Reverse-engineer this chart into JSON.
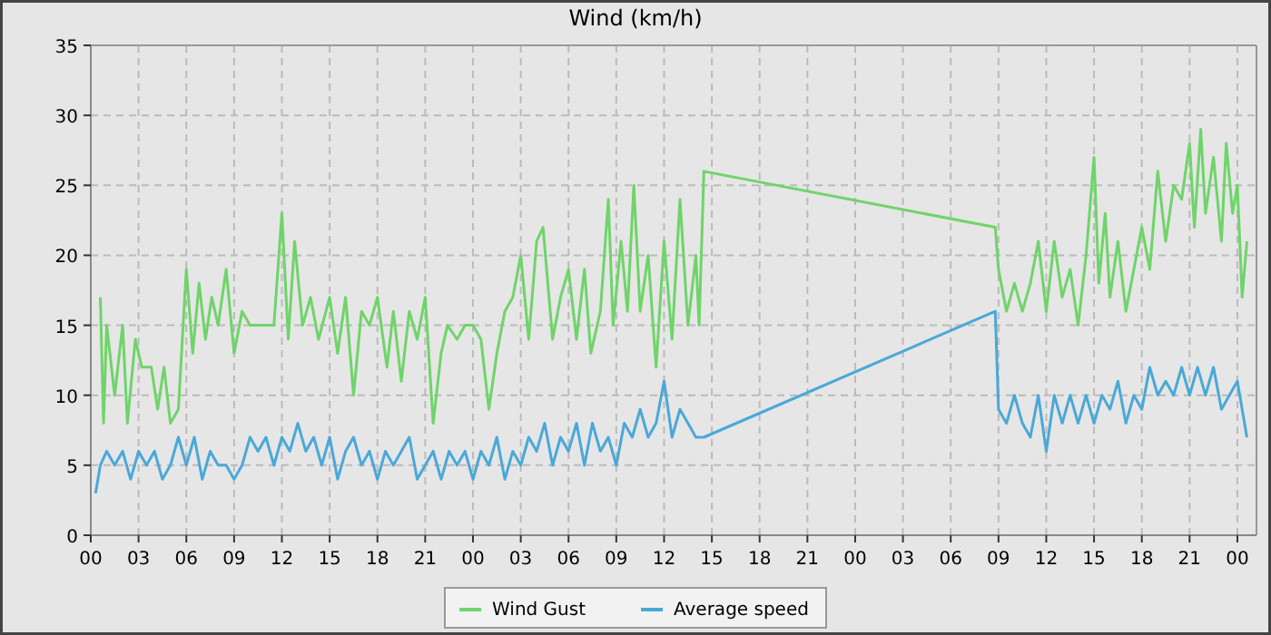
{
  "chart_data": {
    "type": "line",
    "title": "Wind (km/h)",
    "xlim": [
      0,
      73.2
    ],
    "ylim": [
      0,
      35
    ],
    "xticks": [
      {
        "value": 0,
        "label": "00"
      },
      {
        "value": 3,
        "label": "03"
      },
      {
        "value": 6,
        "label": "06"
      },
      {
        "value": 9,
        "label": "09"
      },
      {
        "value": 12,
        "label": "12"
      },
      {
        "value": 15,
        "label": "15"
      },
      {
        "value": 18,
        "label": "18"
      },
      {
        "value": 21,
        "label": "21"
      },
      {
        "value": 24,
        "label": "00"
      },
      {
        "value": 27,
        "label": "03"
      },
      {
        "value": 30,
        "label": "06"
      },
      {
        "value": 33,
        "label": "09"
      },
      {
        "value": 36,
        "label": "12"
      },
      {
        "value": 39,
        "label": "15"
      },
      {
        "value": 42,
        "label": "18"
      },
      {
        "value": 45,
        "label": "21"
      },
      {
        "value": 48,
        "label": "00"
      },
      {
        "value": 51,
        "label": "03"
      },
      {
        "value": 54,
        "label": "06"
      },
      {
        "value": 57,
        "label": "09"
      },
      {
        "value": 60,
        "label": "12"
      },
      {
        "value": 63,
        "label": "15"
      },
      {
        "value": 66,
        "label": "18"
      },
      {
        "value": 69,
        "label": "21"
      },
      {
        "value": 72,
        "label": "00"
      }
    ],
    "yticks": [
      0,
      5,
      10,
      15,
      20,
      25,
      30,
      35
    ],
    "grid": true,
    "legend": "bottom",
    "marker": "none",
    "line_style": "solid",
    "series": [
      {
        "name": "Wind Gust",
        "color": "#6fd46a",
        "x": [
          0.6,
          0.8,
          1,
          1.5,
          2,
          2.3,
          2.8,
          3.2,
          3.8,
          4.2,
          4.6,
          5,
          5.5,
          6,
          6.4,
          6.8,
          7.2,
          7.6,
          8,
          8.5,
          9,
          9.5,
          10,
          11,
          11.5,
          12,
          12.4,
          12.8,
          13.3,
          13.8,
          14.3,
          15,
          15.5,
          16,
          16.5,
          17,
          17.5,
          18,
          18.6,
          19,
          19.5,
          20,
          20.5,
          21,
          21.5,
          22,
          22.4,
          23,
          23.5,
          24,
          24.5,
          25,
          25.5,
          26,
          26.5,
          27,
          27.5,
          28,
          28.4,
          29,
          29.5,
          30,
          30.5,
          31,
          31.4,
          32,
          32.5,
          32.8,
          33.3,
          33.7,
          34.1,
          34.5,
          35,
          35.5,
          36,
          36.5,
          37,
          37.5,
          38,
          38.2,
          38.5,
          56.8,
          57,
          57.5,
          58,
          58.5,
          59,
          59.5,
          60,
          60.5,
          61,
          61.5,
          62,
          62.5,
          63,
          63.3,
          63.7,
          64,
          64.5,
          65,
          65.5,
          66,
          66.5,
          67,
          67.5,
          68,
          68.5,
          69,
          69.3,
          69.7,
          70,
          70.5,
          71,
          71.3,
          71.7,
          72,
          72.3,
          72.6
        ],
        "values": [
          17,
          8,
          15,
          10,
          15,
          8,
          14,
          12,
          12,
          9,
          12,
          8,
          9,
          19,
          13,
          18,
          14,
          17,
          15,
          19,
          13,
          16,
          15,
          15,
          15,
          23,
          14,
          21,
          15,
          17,
          14,
          17,
          13,
          17,
          10,
          16,
          15,
          17,
          12,
          16,
          11,
          16,
          14,
          17,
          8,
          13,
          15,
          14,
          15,
          15,
          14,
          9,
          13,
          16,
          17,
          20,
          14,
          21,
          22,
          14,
          17,
          19,
          14,
          19,
          13,
          16,
          24,
          15,
          21,
          16,
          25,
          16,
          20,
          12,
          21,
          14,
          24,
          15,
          20,
          15,
          26,
          22,
          19,
          16,
          18,
          16,
          18,
          21,
          16,
          21,
          17,
          19,
          15,
          20,
          27,
          18,
          23,
          17,
          21,
          16,
          19,
          22,
          19,
          26,
          21,
          25,
          24,
          28,
          22,
          29,
          23,
          27,
          21,
          28,
          23,
          25,
          17,
          21
        ]
      },
      {
        "name": "Average speed",
        "color": "#4aa8d8",
        "x": [
          0.3,
          0.6,
          1,
          1.5,
          2,
          2.5,
          3,
          3.5,
          4,
          4.5,
          5,
          5.5,
          6,
          6.5,
          7,
          7.5,
          8,
          8.5,
          9,
          9.5,
          10,
          10.5,
          11,
          11.5,
          12,
          12.5,
          13,
          13.5,
          14,
          14.5,
          15,
          15.5,
          16,
          16.5,
          17,
          17.5,
          18,
          18.5,
          19,
          19.5,
          20,
          20.5,
          21,
          21.5,
          22,
          22.5,
          23,
          23.5,
          24,
          24.5,
          25,
          25.5,
          26,
          26.5,
          27,
          27.5,
          28,
          28.5,
          29,
          29.5,
          30,
          30.5,
          31,
          31.5,
          32,
          32.5,
          33,
          33.5,
          34,
          34.5,
          35,
          35.5,
          36,
          36.5,
          37,
          37.5,
          38,
          38.5,
          56.8,
          57,
          57.5,
          58,
          58.5,
          59,
          59.5,
          60,
          60.5,
          61,
          61.5,
          62,
          62.5,
          63,
          63.5,
          64,
          64.5,
          65,
          65.5,
          66,
          66.5,
          67,
          67.5,
          68,
          68.5,
          69,
          69.5,
          70,
          70.5,
          71,
          71.5,
          72,
          72.3,
          72.6
        ],
        "values": [
          3,
          5,
          6,
          5,
          6,
          4,
          6,
          5,
          6,
          4,
          5,
          7,
          5,
          7,
          4,
          6,
          5,
          5,
          4,
          5,
          7,
          6,
          7,
          5,
          7,
          6,
          8,
          6,
          7,
          5,
          7,
          4,
          6,
          7,
          5,
          6,
          4,
          6,
          5,
          6,
          7,
          4,
          5,
          6,
          4,
          6,
          5,
          6,
          4,
          6,
          5,
          7,
          4,
          6,
          5,
          7,
          6,
          8,
          5,
          7,
          6,
          8,
          5,
          8,
          6,
          7,
          5,
          8,
          7,
          9,
          7,
          8,
          11,
          7,
          9,
          8,
          7,
          7,
          16,
          9,
          8,
          10,
          8,
          7,
          10,
          6,
          10,
          8,
          10,
          8,
          10,
          8,
          10,
          9,
          11,
          8,
          10,
          9,
          12,
          10,
          11,
          10,
          12,
          10,
          12,
          10,
          12,
          9,
          10,
          11,
          9,
          7
        ]
      }
    ]
  }
}
